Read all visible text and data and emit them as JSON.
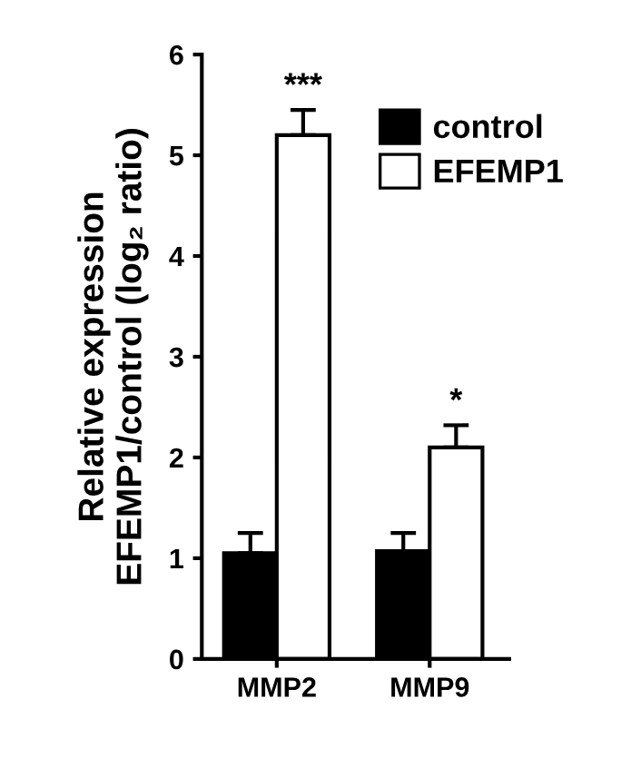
{
  "chart_data": {
    "type": "bar",
    "ylabel": "Relative expression\nEFEMP1/control (log₂ ratio)",
    "categories": [
      "MMP2",
      "MMP9"
    ],
    "series": [
      {
        "name": "control",
        "color": "#000000",
        "values": [
          1.05,
          1.07
        ],
        "errors": [
          [
            1.05,
            1.25
          ],
          [
            1.07,
            1.25
          ]
        ]
      },
      {
        "name": "EFEMP1",
        "color": "#ffffff",
        "values": [
          5.2,
          2.1
        ],
        "errors": [
          [
            5.2,
            5.45
          ],
          [
            2.1,
            2.32
          ]
        ]
      }
    ],
    "ylim": [
      0,
      6
    ],
    "yticks": [
      0,
      1,
      2,
      3,
      4,
      5,
      6
    ],
    "annotations": [
      "***",
      "*"
    ],
    "legend": "top right",
    "grid": false
  }
}
